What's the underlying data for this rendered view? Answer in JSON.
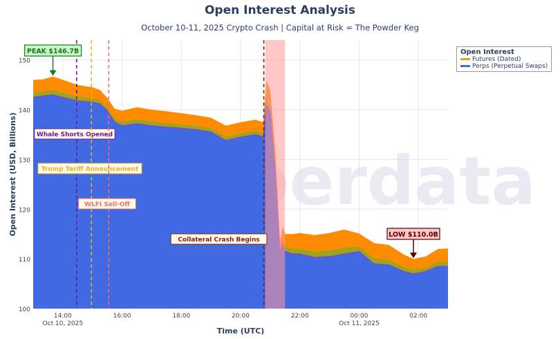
{
  "chart_data": {
    "type": "area",
    "title": "Open Interest Analysis",
    "subtitle": "October 10-11, 2025 Crypto Crash | Capital at Risk = The Powder Keg",
    "xlabel": "Time (UTC)",
    "ylabel": "Open Interest (USD, Billions)",
    "ylim": [
      100,
      154
    ],
    "xlim": [
      "2025-10-10 13:00",
      "2025-10-11 03:00"
    ],
    "yticks": [
      100,
      110,
      120,
      130,
      140,
      150
    ],
    "xticks": [
      {
        "t": "2025-10-10 14:00",
        "label": "14:00",
        "sub": "Oct 10, 2025"
      },
      {
        "t": "2025-10-10 16:00",
        "label": "16:00",
        "sub": ""
      },
      {
        "t": "2025-10-10 18:00",
        "label": "18:00",
        "sub": ""
      },
      {
        "t": "2025-10-10 20:00",
        "label": "20:00",
        "sub": ""
      },
      {
        "t": "2025-10-10 22:00",
        "label": "22:00",
        "sub": ""
      },
      {
        "t": "2025-10-11 00:00",
        "label": "00:00",
        "sub": "Oct 11, 2025"
      },
      {
        "t": "2025-10-11 02:00",
        "label": "02:00",
        "sub": ""
      }
    ],
    "grid": true,
    "legend": {
      "title": "Open Interest",
      "placement": "top-right"
    },
    "x": [
      "2025-10-10 13:00",
      "2025-10-10 13:20",
      "2025-10-10 13:40",
      "2025-10-10 14:00",
      "2025-10-10 14:30",
      "2025-10-10 15:00",
      "2025-10-10 15:15",
      "2025-10-10 15:30",
      "2025-10-10 15:45",
      "2025-10-10 16:00",
      "2025-10-10 16:30",
      "2025-10-10 17:00",
      "2025-10-10 17:30",
      "2025-10-10 18:00",
      "2025-10-10 18:30",
      "2025-10-10 19:00",
      "2025-10-10 19:30",
      "2025-10-10 20:00",
      "2025-10-10 20:30",
      "2025-10-10 20:46",
      "2025-10-10 20:52",
      "2025-10-10 21:00",
      "2025-10-10 21:10",
      "2025-10-10 21:20",
      "2025-10-10 21:25",
      "2025-10-10 21:30",
      "2025-10-10 21:45",
      "2025-10-10 22:00",
      "2025-10-10 22:30",
      "2025-10-10 23:00",
      "2025-10-10 23:30",
      "2025-10-11 00:00",
      "2025-10-11 00:30",
      "2025-10-11 01:00",
      "2025-10-11 01:30",
      "2025-10-11 01:50",
      "2025-10-11 02:15",
      "2025-10-11 02:40",
      "2025-10-11 03:00"
    ],
    "series": [
      {
        "name": "Perps (Perpetual Swaps)",
        "color": "#4169e1",
        "values": [
          142.5,
          142.8,
          143.0,
          142.5,
          141.8,
          141.5,
          141.2,
          139.8,
          137.5,
          136.8,
          137.2,
          136.8,
          136.5,
          136.3,
          136.0,
          135.5,
          133.8,
          134.5,
          135.0,
          134.5,
          141.0,
          139.5,
          128.0,
          111.0,
          113.0,
          111.5,
          111.0,
          111.0,
          110.3,
          110.5,
          111.0,
          111.5,
          109.0,
          108.8,
          107.5,
          107.0,
          107.5,
          108.5,
          108.5
        ]
      },
      {
        "name": "Futures (Dated)",
        "color": "#daa520",
        "values": [
          3.5,
          3.3,
          3.7,
          3.5,
          3.2,
          3.0,
          2.8,
          2.6,
          2.7,
          3.0,
          3.3,
          3.2,
          3.2,
          3.0,
          2.9,
          2.9,
          3.0,
          3.0,
          3.0,
          3.0,
          4.8,
          4.5,
          4.0,
          2.5,
          3.5,
          3.5,
          4.0,
          4.2,
          4.5,
          4.7,
          4.9,
          3.6,
          4.2,
          4.0,
          3.4,
          3.0,
          3.0,
          3.5,
          3.6
        ]
      }
    ],
    "band_color": "#ff8c00",
    "events": [
      {
        "t": "2025-10-10 14:28",
        "label": "Whale Shorts Opened",
        "color": "#6a1b9a"
      },
      {
        "t": "2025-10-10 14:58",
        "label": "Trump Tariff Announcement",
        "color": "#e6b422"
      },
      {
        "t": "2025-10-10 15:33",
        "label": "WLFI Sell-Off",
        "color": "#e57373"
      },
      {
        "t": "2025-10-10 20:47",
        "label": "Collateral Crash Begins",
        "color": "#8b1a1a"
      }
    ],
    "shaded_region": {
      "from": "2025-10-10 20:50",
      "to": "2025-10-10 21:30",
      "color": "#ff9999"
    },
    "annotations": [
      {
        "t": "2025-10-10 13:40",
        "y": 146.7,
        "label": "PEAK $146.7B",
        "color": "#1b7a1b",
        "bg": "#c8f7c8"
      },
      {
        "t": "2025-10-11 01:50",
        "y": 110.0,
        "label": "LOW $110.0B",
        "color": "#5a0000",
        "bg": "#ffc8c8"
      }
    ],
    "watermark": "amberdata"
  }
}
